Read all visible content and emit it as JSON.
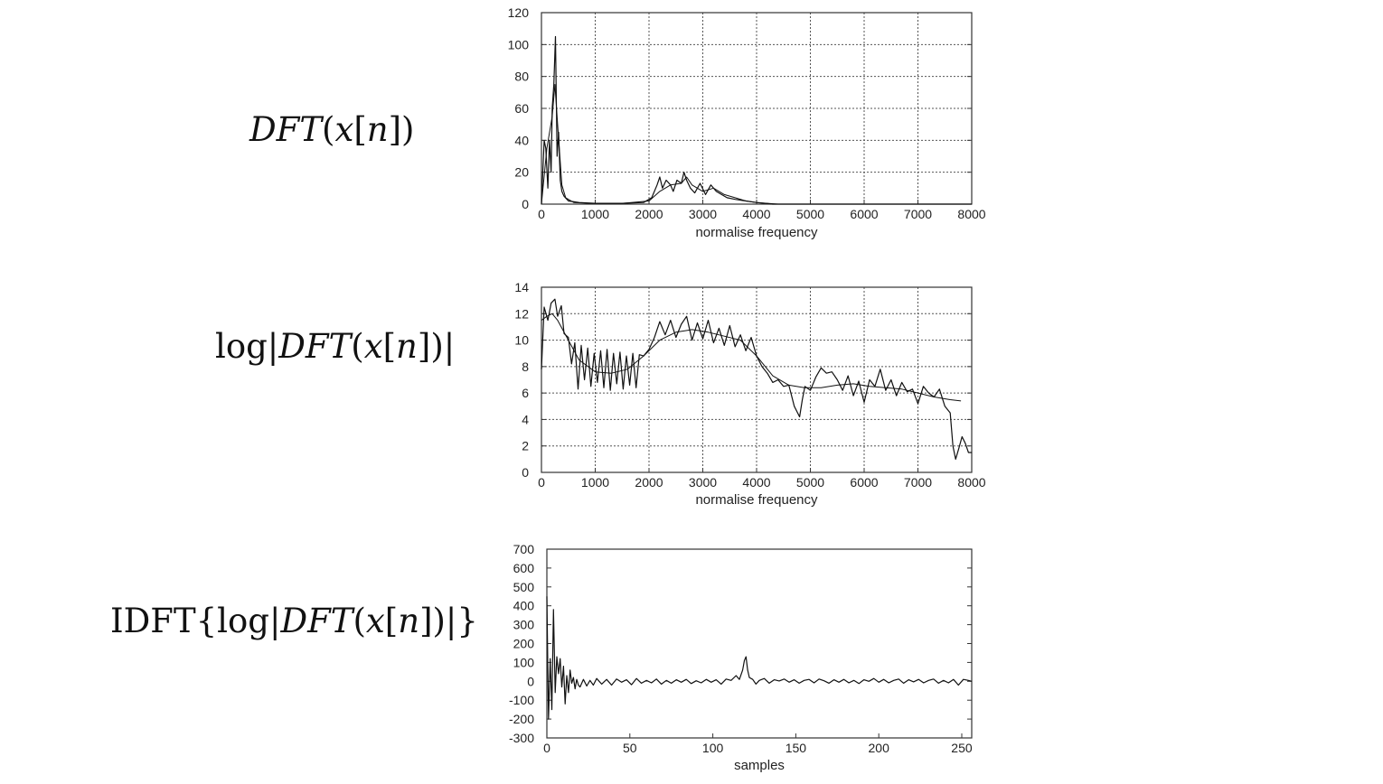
{
  "equations": {
    "eq1": {
      "a": "DFT",
      "b": "(",
      "c": "x",
      "d": "[",
      "e": "n",
      "f": "])"
    },
    "eq2": {
      "pre": "log",
      "a": "|",
      "b": "DFT",
      "c": "(",
      "d": "x",
      "e": "[",
      "f": "n",
      "g": "])|"
    },
    "eq3": {
      "pre": "IDFT{log|",
      "b": "DFT",
      "c": "(",
      "d": "x",
      "e": "[",
      "f": "n",
      "g": "])|}"
    }
  },
  "chart_data": [
    {
      "type": "line",
      "title": "",
      "xlabel": "normalise frequency",
      "ylabel": "",
      "xlim": [
        0,
        8000
      ],
      "ylim": [
        0,
        120
      ],
      "xticks": [
        0,
        1000,
        2000,
        3000,
        4000,
        5000,
        6000,
        7000,
        8000
      ],
      "yticks": [
        0,
        20,
        40,
        60,
        80,
        100,
        120
      ],
      "grid": "dashed",
      "series": [
        {
          "x": [
            0,
            50,
            80,
            120,
            150,
            180,
            200,
            230,
            260,
            290,
            320,
            350,
            380,
            420,
            500,
            700,
            1000,
            1500,
            1900,
            2050,
            2150,
            2200,
            2250,
            2320,
            2400,
            2450,
            2520,
            2600,
            2650,
            2700,
            2770,
            2850,
            2950,
            3050,
            3150,
            3250,
            3350,
            3450,
            3600,
            3800,
            4000,
            4300,
            8000
          ],
          "y": [
            0,
            40,
            35,
            10,
            40,
            20,
            60,
            75,
            105,
            30,
            45,
            15,
            8,
            5,
            2,
            1,
            0.5,
            0.5,
            1,
            4,
            12,
            17,
            10,
            15,
            12,
            8,
            15,
            13,
            20,
            15,
            10,
            7,
            13,
            6,
            12,
            8,
            6,
            4,
            3,
            2,
            1,
            0,
            0
          ]
        },
        {
          "x": [
            0,
            100,
            200,
            250,
            300,
            380,
            450,
            600,
            900,
            1500,
            2000,
            2200,
            2400,
            2600,
            2700,
            2800,
            3000,
            3200,
            3400,
            3600,
            3800,
            4000,
            4200,
            4400,
            8000
          ],
          "y": [
            0,
            35,
            55,
            75,
            50,
            12,
            4,
            1,
            0.5,
            0.5,
            2,
            8,
            12,
            13,
            17,
            12,
            8,
            10,
            6,
            4,
            2,
            1,
            0.5,
            0,
            0
          ]
        }
      ]
    },
    {
      "type": "line",
      "title": "",
      "xlabel": "normalise frequency",
      "ylabel": "",
      "xlim": [
        0,
        8000
      ],
      "ylim": [
        0,
        14
      ],
      "xticks": [
        0,
        1000,
        2000,
        3000,
        4000,
        5000,
        6000,
        7000,
        8000
      ],
      "yticks": [
        0,
        2,
        4,
        6,
        8,
        10,
        12,
        14
      ],
      "grid": "dashed",
      "series": [
        {
          "x": [
            0,
            50,
            120,
            180,
            250,
            300,
            370,
            420,
            500,
            560,
            620,
            680,
            740,
            800,
            860,
            920,
            980,
            1040,
            1100,
            1160,
            1220,
            1280,
            1340,
            1400,
            1460,
            1520,
            1580,
            1640,
            1700,
            1760,
            1820,
            1900,
            2000,
            2100,
            2200,
            2300,
            2400,
            2500,
            2600,
            2700,
            2800,
            2900,
            3000,
            3100,
            3200,
            3300,
            3400,
            3500,
            3600,
            3700,
            3800,
            3900,
            4000,
            4100,
            4200,
            4300,
            4400,
            4500,
            4600,
            4700,
            4800,
            4850,
            4900,
            5000,
            5100,
            5200,
            5300,
            5400,
            5500,
            5600,
            5700,
            5800,
            5900,
            6000,
            6100,
            6200,
            6300,
            6400,
            6500,
            6600,
            6700,
            6800,
            6900,
            7000,
            7100,
            7200,
            7300,
            7400,
            7500,
            7600,
            7650,
            7700,
            7760,
            7820,
            7880,
            7940,
            8000
          ],
          "y": [
            7.8,
            12.5,
            11.5,
            12.8,
            13.1,
            11.8,
            12.6,
            10.5,
            10.2,
            8.2,
            9.8,
            6.3,
            9.6,
            7.0,
            9.4,
            6.5,
            9.0,
            6.8,
            9.2,
            6.4,
            9.3,
            6.2,
            9.0,
            6.7,
            9.1,
            6.3,
            8.8,
            6.6,
            9.0,
            6.4,
            8.9,
            8.8,
            9.3,
            10.2,
            11.4,
            10.4,
            11.5,
            10.2,
            11.2,
            11.8,
            10.0,
            11.3,
            10.1,
            11.5,
            9.8,
            10.9,
            9.6,
            11.1,
            9.5,
            10.4,
            9.2,
            10.2,
            8.8,
            8.0,
            7.5,
            6.8,
            7.0,
            6.5,
            6.6,
            5.0,
            4.2,
            5.5,
            6.5,
            6.2,
            7.2,
            7.9,
            7.5,
            7.6,
            7.0,
            6.2,
            7.3,
            5.8,
            6.9,
            5.3,
            7.0,
            6.5,
            7.8,
            6.2,
            7.0,
            5.8,
            6.8,
            6.1,
            6.3,
            5.2,
            6.5,
            6.0,
            5.7,
            6.3,
            5.0,
            4.5,
            2.0,
            1.0,
            1.8,
            2.7,
            2.2,
            1.5,
            1.5
          ]
        },
        {
          "x": [
            0,
            100,
            200,
            300,
            500,
            700,
            1000,
            1300,
            1600,
            1900,
            2200,
            2500,
            2800,
            3100,
            3400,
            3700,
            4000,
            4300,
            4600,
            4900,
            5200,
            5500,
            5800,
            6100,
            6400,
            6700,
            7000,
            7300,
            7600,
            7800
          ],
          "y": [
            11.5,
            11.8,
            12.0,
            11.5,
            10.0,
            8.5,
            7.6,
            7.5,
            7.8,
            8.8,
            10.0,
            10.6,
            10.8,
            10.6,
            10.3,
            10.0,
            8.8,
            7.3,
            6.6,
            6.4,
            6.4,
            6.6,
            6.7,
            6.5,
            6.4,
            6.3,
            6.0,
            5.7,
            5.5,
            5.4
          ]
        }
      ]
    },
    {
      "type": "line",
      "title": "",
      "xlabel": "samples",
      "ylabel": "",
      "xlim": [
        0,
        256
      ],
      "ylim": [
        -300,
        700
      ],
      "xticks": [
        0,
        50,
        100,
        150,
        200,
        250
      ],
      "yticks": [
        -300,
        -200,
        -100,
        0,
        100,
        200,
        300,
        400,
        500,
        600,
        700
      ],
      "grid": "none",
      "series": [
        {
          "x": [
            0,
            1,
            2,
            3,
            4,
            5,
            6,
            7,
            8,
            9,
            10,
            11,
            12,
            13,
            14,
            15,
            16,
            17,
            18,
            19,
            20,
            22,
            24,
            26,
            28,
            30,
            33,
            36,
            39,
            42,
            45,
            48,
            51,
            54,
            57,
            60,
            63,
            66,
            69,
            72,
            75,
            78,
            81,
            84,
            87,
            90,
            93,
            96,
            99,
            102,
            105,
            108,
            111,
            114,
            116,
            118,
            119,
            120,
            121,
            122,
            124,
            126,
            128,
            131,
            134,
            137,
            140,
            143,
            146,
            149,
            152,
            155,
            158,
            161,
            164,
            167,
            170,
            173,
            176,
            179,
            182,
            185,
            188,
            191,
            194,
            197,
            200,
            203,
            206,
            209,
            212,
            215,
            218,
            221,
            224,
            227,
            230,
            233,
            236,
            239,
            242,
            245,
            248,
            251,
            254,
            256
          ],
          "y": [
            450,
            -200,
            120,
            -150,
            380,
            -60,
            130,
            40,
            120,
            -30,
            80,
            -120,
            30,
            -60,
            60,
            -10,
            20,
            -40,
            10,
            -20,
            -30,
            10,
            -25,
            5,
            -20,
            15,
            -15,
            10,
            -20,
            12,
            -5,
            8,
            -18,
            15,
            -10,
            5,
            -8,
            12,
            -15,
            5,
            -10,
            8,
            -5,
            10,
            -12,
            3,
            -8,
            10,
            -5,
            8,
            -15,
            12,
            5,
            30,
            10,
            60,
            110,
            130,
            60,
            20,
            10,
            -15,
            5,
            15,
            -10,
            8,
            2,
            12,
            -5,
            8,
            -10,
            5,
            10,
            -8,
            12,
            3,
            -10,
            8,
            -5,
            10,
            -8,
            5,
            -12,
            8,
            0,
            15,
            -5,
            10,
            -8,
            5,
            12,
            -10,
            8,
            -3,
            10,
            -8,
            5,
            12,
            -10,
            5,
            -8,
            10,
            -20,
            10,
            5,
            0
          ]
        }
      ]
    }
  ]
}
